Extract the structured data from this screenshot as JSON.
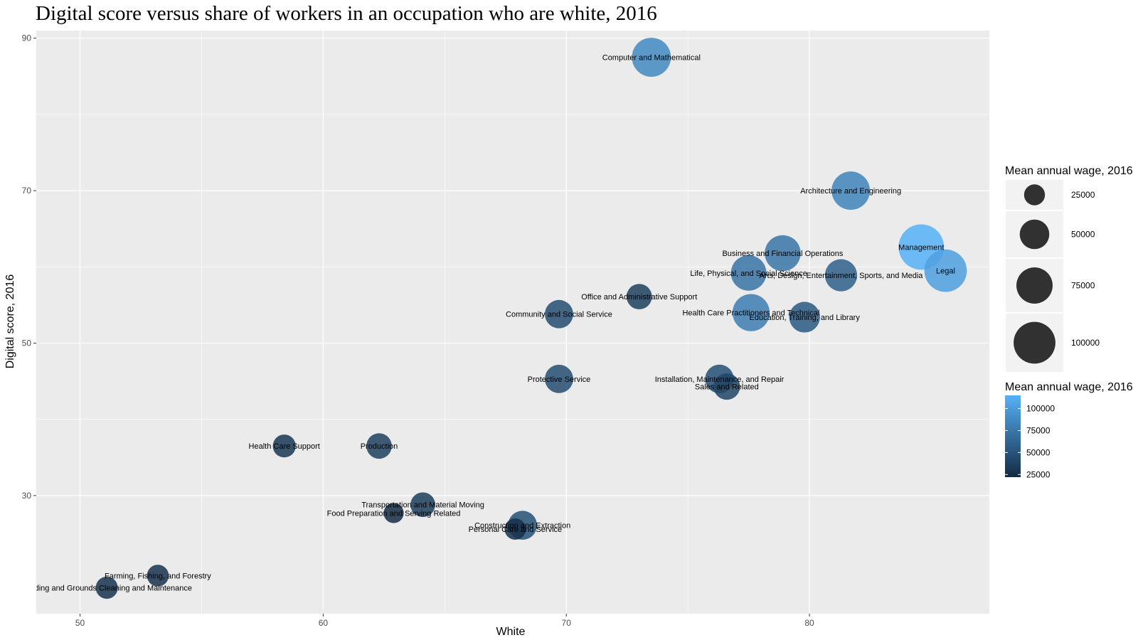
{
  "chart_data": {
    "type": "scatter",
    "title": "Digital score versus share of workers in an occupation who are white, 2016",
    "xlabel": "White",
    "ylabel": "Digital score, 2016",
    "xlim": [
      48.2,
      87.4
    ],
    "ylim": [
      14.5,
      91
    ],
    "xticks": [
      50,
      60,
      70,
      80
    ],
    "yticks": [
      30,
      50,
      70,
      90
    ],
    "grid": true,
    "size_legend": {
      "title": "Mean annual wage, 2016",
      "entries": [
        {
          "value": 25000,
          "label": "25000"
        },
        {
          "value": 50000,
          "label": "50000"
        },
        {
          "value": 75000,
          "label": "75000"
        },
        {
          "value": 100000,
          "label": "100000"
        }
      ]
    },
    "color_legend": {
      "title": "Mean annual wage, 2016",
      "low_color": "#132B43",
      "high_color": "#56B1F7",
      "min": 22000,
      "max": 115000,
      "ticks": [
        {
          "value": 100000,
          "label": "100000"
        },
        {
          "value": 75000,
          "label": "75000"
        },
        {
          "value": 50000,
          "label": "50000"
        },
        {
          "value": 25000,
          "label": "25000"
        }
      ]
    },
    "points": [
      {
        "label": "Computer and Mathematical",
        "white": 73.5,
        "digital": 87.5,
        "wage": 87000
      },
      {
        "label": "Architecture and Engineering",
        "white": 81.7,
        "digital": 70.0,
        "wage": 84000
      },
      {
        "label": "Management",
        "white": 84.6,
        "digital": 62.6,
        "wage": 118000
      },
      {
        "label": "Legal",
        "white": 85.6,
        "digital": 59.5,
        "wage": 103000
      },
      {
        "label": "Business and Financial Operations",
        "white": 78.9,
        "digital": 61.8,
        "wage": 74000
      },
      {
        "label": "Life, Physical, and Social Science",
        "white": 77.5,
        "digital": 59.2,
        "wage": 72000
      },
      {
        "label": "Arts, Design, Entertainment, Sports, and Media",
        "white": 81.3,
        "digital": 58.9,
        "wage": 59000
      },
      {
        "label": "Office and Administrative Support",
        "white": 73.0,
        "digital": 56.1,
        "wage": 37000
      },
      {
        "label": "Community and Social Service",
        "white": 69.7,
        "digital": 53.8,
        "wage": 46000
      },
      {
        "label": "Health Care Practitioners and Technical",
        "white": 77.6,
        "digital": 54.0,
        "wage": 79000
      },
      {
        "label": "Education, Training, and Library",
        "white": 79.8,
        "digital": 53.4,
        "wage": 54000
      },
      {
        "label": "Protective Service",
        "white": 69.7,
        "digital": 45.3,
        "wage": 46000
      },
      {
        "label": "Installation, Maintenance, and Repair",
        "white": 76.3,
        "digital": 45.3,
        "wage": 47000
      },
      {
        "label": "Sales and Related",
        "white": 76.6,
        "digital": 44.3,
        "wage": 40000
      },
      {
        "label": "Health Care Support",
        "white": 58.4,
        "digital": 36.5,
        "wage": 30000
      },
      {
        "label": "Production",
        "white": 62.3,
        "digital": 36.5,
        "wage": 37000
      },
      {
        "label": "Transportation and Material Moving",
        "white": 64.1,
        "digital": 28.8,
        "wage": 35000
      },
      {
        "label": "Food Preparation and Serving Related",
        "white": 62.9,
        "digital": 27.7,
        "wage": 23000
      },
      {
        "label": "Construction and Extraction",
        "white": 68.2,
        "digital": 26.1,
        "wage": 48000
      },
      {
        "label": "Personal Care and Service",
        "white": 67.9,
        "digital": 25.6,
        "wage": 26000
      },
      {
        "label": "Farming, Fishing, and Forestry",
        "white": 53.2,
        "digital": 19.5,
        "wage": 27000
      },
      {
        "label": "Building and Grounds Cleaning and Maintenance",
        "white": 51.1,
        "digital": 17.9,
        "wage": 28000
      }
    ]
  }
}
